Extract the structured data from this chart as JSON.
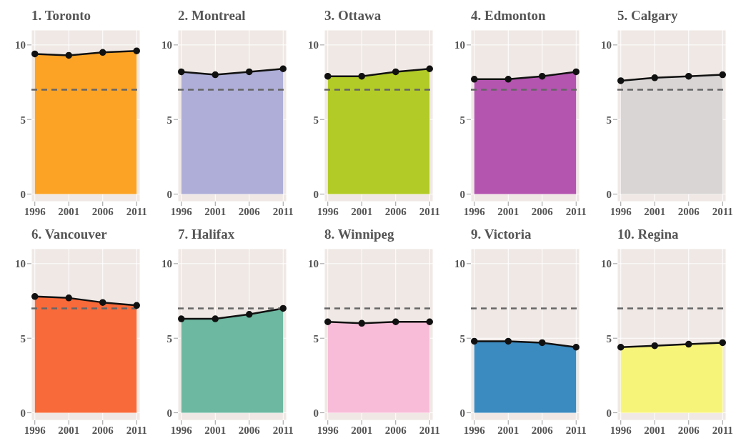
{
  "chart_data": [
    {
      "type": "area",
      "title": "1. Toronto",
      "x": [
        1996,
        2001,
        2006,
        2011
      ],
      "series": [
        {
          "color": "#fca326",
          "values": [
            9.4,
            9.3,
            9.5,
            9.6
          ]
        }
      ],
      "xlim": [
        1995.5,
        2011.5
      ],
      "xticks": [
        1996,
        2001,
        2006,
        2011
      ],
      "ylim": [
        -0.5,
        11
      ],
      "yticks": [
        0,
        5,
        10
      ],
      "grid": true,
      "marker": "circle",
      "ref_lines": [
        {
          "axis": "y",
          "value": 7,
          "color": "#666666",
          "line_style": "dashed"
        }
      ]
    },
    {
      "type": "area",
      "title": "2. Montreal",
      "x": [
        1996,
        2001,
        2006,
        2011
      ],
      "series": [
        {
          "color": "#aeaed8",
          "values": [
            8.2,
            8.0,
            8.2,
            8.4
          ]
        }
      ],
      "xlim": [
        1995.5,
        2011.5
      ],
      "xticks": [
        1996,
        2001,
        2006,
        2011
      ],
      "ylim": [
        -0.5,
        11
      ],
      "yticks": [
        0,
        5,
        10
      ],
      "grid": true,
      "marker": "circle",
      "ref_lines": [
        {
          "axis": "y",
          "value": 7,
          "color": "#666666",
          "line_style": "dashed"
        }
      ]
    },
    {
      "type": "area",
      "title": "3. Ottawa",
      "x": [
        1996,
        2001,
        2006,
        2011
      ],
      "series": [
        {
          "color": "#b3cb26",
          "values": [
            7.9,
            7.9,
            8.2,
            8.4
          ]
        }
      ],
      "xlim": [
        1995.5,
        2011.5
      ],
      "xticks": [
        1996,
        2001,
        2006,
        2011
      ],
      "ylim": [
        -0.5,
        11
      ],
      "yticks": [
        0,
        5,
        10
      ],
      "grid": true,
      "marker": "circle",
      "ref_lines": [
        {
          "axis": "y",
          "value": 7,
          "color": "#666666",
          "line_style": "dashed"
        }
      ]
    },
    {
      "type": "area",
      "title": "4. Edmonton",
      "x": [
        1996,
        2001,
        2006,
        2011
      ],
      "series": [
        {
          "color": "#b455b0",
          "values": [
            7.7,
            7.7,
            7.9,
            8.2
          ]
        }
      ],
      "xlim": [
        1995.5,
        2011.5
      ],
      "xticks": [
        1996,
        2001,
        2006,
        2011
      ],
      "ylim": [
        -0.5,
        11
      ],
      "yticks": [
        0,
        5,
        10
      ],
      "grid": true,
      "marker": "circle",
      "ref_lines": [
        {
          "axis": "y",
          "value": 7,
          "color": "#666666",
          "line_style": "dashed"
        }
      ]
    },
    {
      "type": "area",
      "title": "5. Calgary",
      "x": [
        1996,
        2001,
        2006,
        2011
      ],
      "series": [
        {
          "color": "#d9d5d5",
          "values": [
            7.6,
            7.8,
            7.9,
            8.0
          ]
        }
      ],
      "xlim": [
        1995.5,
        2011.5
      ],
      "xticks": [
        1996,
        2001,
        2006,
        2011
      ],
      "ylim": [
        -0.5,
        11
      ],
      "yticks": [
        0,
        5,
        10
      ],
      "grid": true,
      "marker": "circle",
      "ref_lines": [
        {
          "axis": "y",
          "value": 7,
          "color": "#666666",
          "line_style": "dashed"
        }
      ]
    },
    {
      "type": "area",
      "title": "6. Vancouver",
      "x": [
        1996,
        2001,
        2006,
        2011
      ],
      "series": [
        {
          "color": "#f96a3a",
          "values": [
            7.8,
            7.7,
            7.4,
            7.2
          ]
        }
      ],
      "xlim": [
        1995.5,
        2011.5
      ],
      "xticks": [
        1996,
        2001,
        2006,
        2011
      ],
      "ylim": [
        -0.5,
        11
      ],
      "yticks": [
        0,
        5,
        10
      ],
      "grid": true,
      "marker": "circle",
      "ref_lines": [
        {
          "axis": "y",
          "value": 7,
          "color": "#666666",
          "line_style": "dashed"
        }
      ]
    },
    {
      "type": "area",
      "title": "7. Halifax",
      "x": [
        1996,
        2001,
        2006,
        2011
      ],
      "series": [
        {
          "color": "#6cb8a0",
          "values": [
            6.3,
            6.3,
            6.6,
            7.0
          ]
        }
      ],
      "xlim": [
        1995.5,
        2011.5
      ],
      "xticks": [
        1996,
        2001,
        2006,
        2011
      ],
      "ylim": [
        -0.5,
        11
      ],
      "yticks": [
        0,
        5,
        10
      ],
      "grid": true,
      "marker": "circle",
      "ref_lines": [
        {
          "axis": "y",
          "value": 7,
          "color": "#666666",
          "line_style": "dashed"
        }
      ]
    },
    {
      "type": "area",
      "title": "8. Winnipeg",
      "x": [
        1996,
        2001,
        2006,
        2011
      ],
      "series": [
        {
          "color": "#f8bcd8",
          "values": [
            6.1,
            6.0,
            6.1,
            6.1
          ]
        }
      ],
      "xlim": [
        1995.5,
        2011.5
      ],
      "xticks": [
        1996,
        2001,
        2006,
        2011
      ],
      "ylim": [
        -0.5,
        11
      ],
      "yticks": [
        0,
        5,
        10
      ],
      "grid": true,
      "marker": "circle",
      "ref_lines": [
        {
          "axis": "y",
          "value": 7,
          "color": "#666666",
          "line_style": "dashed"
        }
      ]
    },
    {
      "type": "area",
      "title": "9. Victoria",
      "x": [
        1996,
        2001,
        2006,
        2011
      ],
      "series": [
        {
          "color": "#3b8ac0",
          "values": [
            4.8,
            4.8,
            4.7,
            4.4
          ]
        }
      ],
      "xlim": [
        1995.5,
        2011.5
      ],
      "xticks": [
        1996,
        2001,
        2006,
        2011
      ],
      "ylim": [
        -0.5,
        11
      ],
      "yticks": [
        0,
        5,
        10
      ],
      "grid": true,
      "marker": "circle",
      "ref_lines": [
        {
          "axis": "y",
          "value": 7,
          "color": "#666666",
          "line_style": "dashed"
        }
      ]
    },
    {
      "type": "area",
      "title": "10. Regina",
      "x": [
        1996,
        2001,
        2006,
        2011
      ],
      "series": [
        {
          "color": "#f7f47a",
          "values": [
            4.4,
            4.5,
            4.6,
            4.7
          ]
        }
      ],
      "xlim": [
        1995.5,
        2011.5
      ],
      "xticks": [
        1996,
        2001,
        2006,
        2011
      ],
      "ylim": [
        -0.5,
        11
      ],
      "yticks": [
        0,
        5,
        10
      ],
      "grid": true,
      "marker": "circle",
      "ref_lines": [
        {
          "axis": "y",
          "value": 7,
          "color": "#666666",
          "line_style": "dashed"
        }
      ]
    }
  ]
}
